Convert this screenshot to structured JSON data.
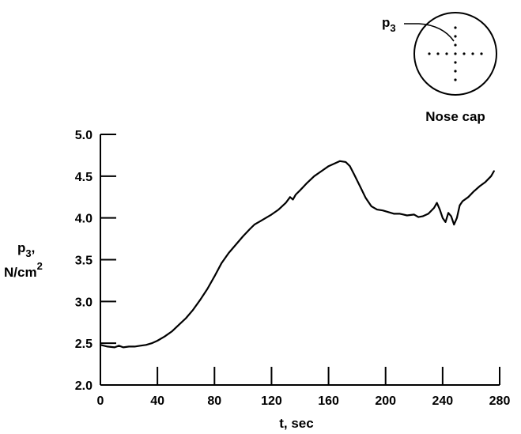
{
  "chart_data": {
    "type": "line",
    "title": "",
    "xlabel": "t, sec",
    "ylabel": {
      "main": "p",
      "sub": "3",
      "suffix": ",",
      "unit_base": "N/cm",
      "unit_sup": "2"
    },
    "xlim": [
      0,
      280
    ],
    "ylim": [
      2.0,
      5.0
    ],
    "xticks": [
      0,
      40,
      80,
      120,
      160,
      200,
      240,
      280
    ],
    "yticks": [
      2.0,
      2.5,
      3.0,
      3.5,
      4.0,
      4.5,
      5.0
    ],
    "ytick_labels": [
      "2.0",
      "2.5",
      "3.0",
      "3.5",
      "4.0",
      "4.5",
      "5.0"
    ],
    "grid": false,
    "series": [
      {
        "x": [
          0,
          5,
          10,
          13,
          16,
          20,
          24,
          28,
          32,
          36,
          40,
          45,
          50,
          55,
          60,
          65,
          70,
          75,
          80,
          85,
          90,
          95,
          100,
          105,
          108,
          112,
          116,
          120,
          125,
          130,
          133,
          135,
          137,
          140,
          145,
          150,
          155,
          160,
          164,
          168,
          172,
          175,
          178,
          182,
          186,
          190,
          194,
          198,
          202,
          206,
          210,
          215,
          220,
          223,
          226,
          230,
          234,
          236,
          238,
          240,
          242,
          244,
          246,
          248,
          250,
          252,
          254,
          258,
          262,
          266,
          270,
          274,
          276
        ],
        "y": [
          2.48,
          2.46,
          2.45,
          2.47,
          2.45,
          2.46,
          2.46,
          2.47,
          2.48,
          2.5,
          2.53,
          2.58,
          2.64,
          2.72,
          2.8,
          2.9,
          3.02,
          3.15,
          3.3,
          3.46,
          3.58,
          3.68,
          3.78,
          3.87,
          3.92,
          3.96,
          4.0,
          4.04,
          4.1,
          4.18,
          4.25,
          4.22,
          4.28,
          4.33,
          4.42,
          4.5,
          4.56,
          4.62,
          4.65,
          4.68,
          4.67,
          4.62,
          4.52,
          4.38,
          4.24,
          4.14,
          4.1,
          4.09,
          4.07,
          4.05,
          4.05,
          4.03,
          4.04,
          4.01,
          4.02,
          4.05,
          4.12,
          4.18,
          4.1,
          4.0,
          3.95,
          4.06,
          4.02,
          3.92,
          4.0,
          4.15,
          4.2,
          4.25,
          4.32,
          4.38,
          4.43,
          4.5,
          4.56
        ]
      }
    ]
  },
  "inset": {
    "label_main": "p",
    "label_sub": "3",
    "caption": "Nose cap"
  }
}
